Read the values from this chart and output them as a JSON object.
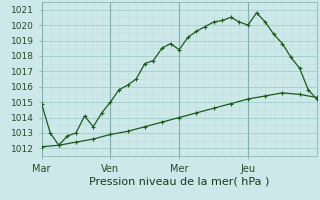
{
  "xlabel": "Pression niveau de la mer( hPa )",
  "ylim": [
    1011.5,
    1021.5
  ],
  "xlim": [
    0,
    96
  ],
  "yticks": [
    1012,
    1013,
    1014,
    1015,
    1016,
    1017,
    1018,
    1019,
    1020,
    1021
  ],
  "xtick_positions": [
    0,
    24,
    48,
    72
  ],
  "xtick_labels": [
    "Mar",
    "Ven",
    "Mer",
    "Jeu"
  ],
  "bg_color": "#cce8e8",
  "grid_color_major": "#aad0d0",
  "grid_color_minor": "#c0dcdc",
  "line_color": "#1a5c1a",
  "line1_x": [
    0,
    3,
    6,
    9,
    12,
    15,
    18,
    21,
    24,
    27,
    30,
    33,
    36,
    39,
    42,
    45,
    48,
    51,
    54,
    57,
    60,
    63,
    66,
    69,
    72,
    75,
    78,
    81,
    84,
    87,
    90,
    93,
    96
  ],
  "line1_y": [
    1014.9,
    1013.0,
    1012.2,
    1012.8,
    1013.0,
    1014.1,
    1013.4,
    1014.3,
    1015.0,
    1015.8,
    1016.1,
    1016.5,
    1017.5,
    1017.7,
    1018.5,
    1018.8,
    1018.4,
    1019.2,
    1019.6,
    1019.9,
    1020.2,
    1020.3,
    1020.5,
    1020.2,
    1020.0,
    1020.8,
    1020.2,
    1019.4,
    1018.8,
    1017.9,
    1017.2,
    1015.8,
    1015.2
  ],
  "line2_x": [
    0,
    6,
    12,
    18,
    24,
    30,
    36,
    42,
    48,
    54,
    60,
    66,
    72,
    78,
    84,
    90,
    96
  ],
  "line2_y": [
    1012.1,
    1012.2,
    1012.4,
    1012.6,
    1012.9,
    1013.1,
    1013.4,
    1013.7,
    1014.0,
    1014.3,
    1014.6,
    1014.9,
    1015.2,
    1015.4,
    1015.6,
    1015.5,
    1015.3
  ],
  "vline_positions": [
    0,
    24,
    48,
    72
  ],
  "fontsize_xlabel": 8,
  "fontsize_yticks": 6.5,
  "fontsize_xticks": 7
}
